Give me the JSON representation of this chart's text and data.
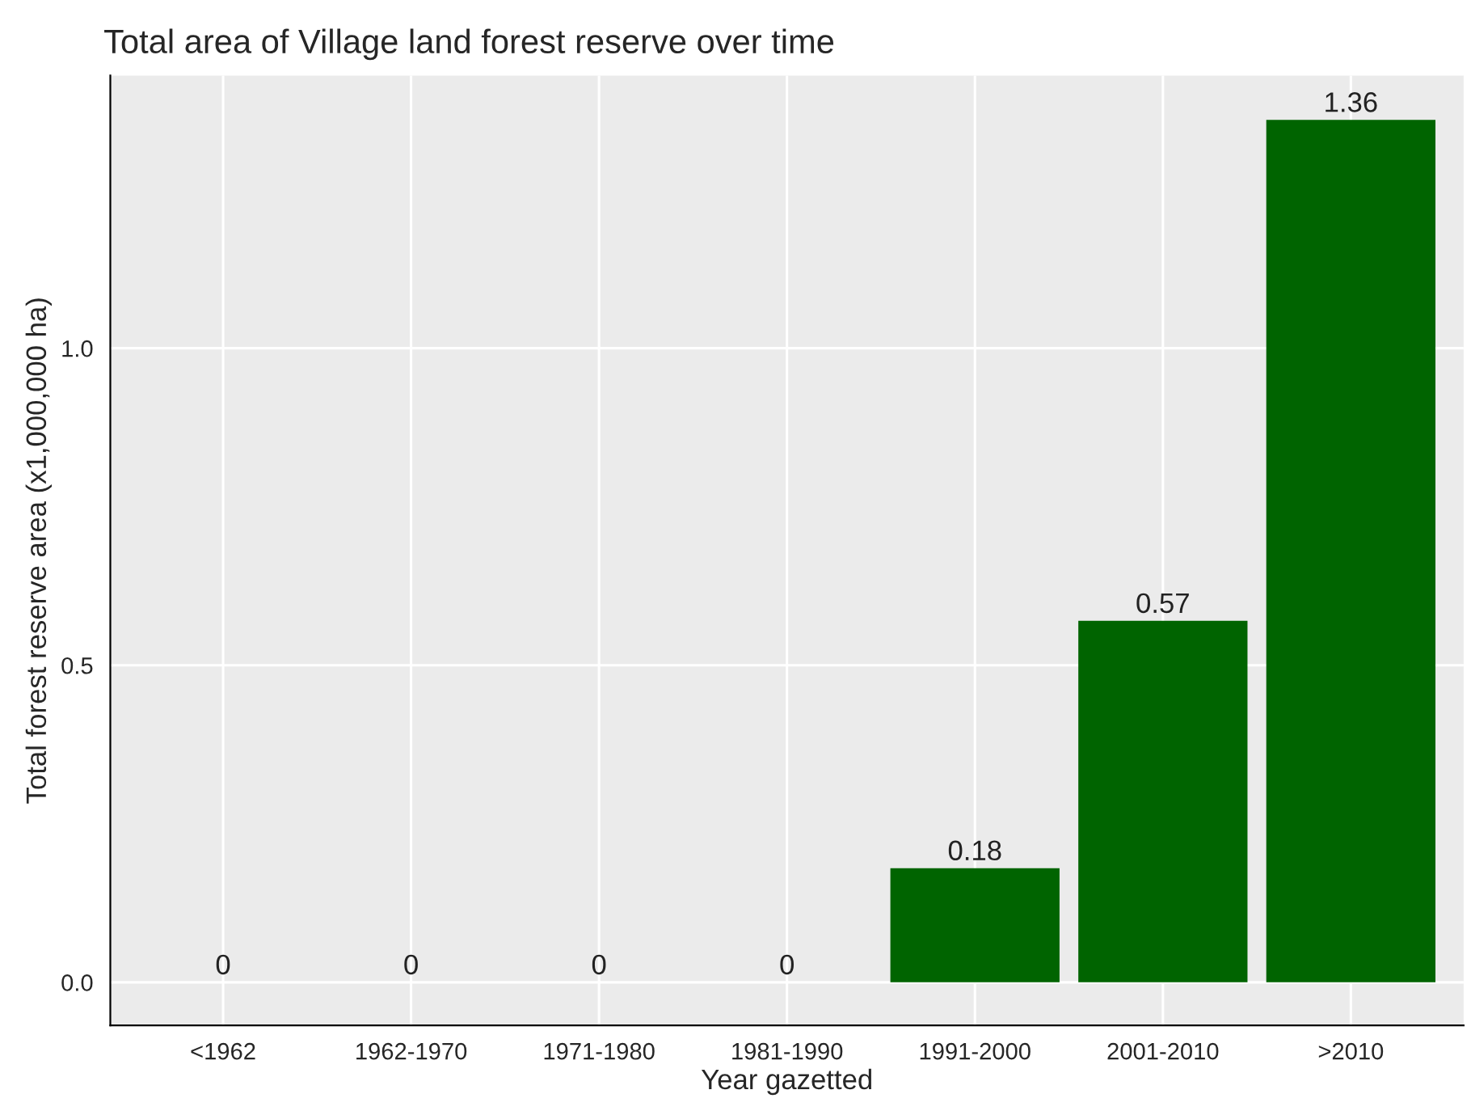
{
  "chart_data": {
    "type": "bar",
    "title": "Total area of Village land forest reserve over time",
    "xlabel": "Year gazetted",
    "ylabel": "Total forest reserve area (x1,000,000 ha)",
    "categories": [
      "<1962",
      "1962-1970",
      "1971-1980",
      "1981-1990",
      "1991-2000",
      "2001-2010",
      ">2010"
    ],
    "values": [
      0,
      0,
      0,
      0,
      0.18,
      0.57,
      1.36
    ],
    "value_labels": [
      "0",
      "0",
      "0",
      "0",
      "0.18",
      "0.57",
      "1.36"
    ],
    "color": "#006400",
    "ylim": [
      -0.068,
      1.43
    ],
    "yticks": [
      {
        "value": 0,
        "label": "0.0"
      },
      {
        "value": 0.5,
        "label": "0.5"
      },
      {
        "value": 1.0,
        "label": "1.0"
      }
    ],
    "grid": true,
    "legend": false
  }
}
